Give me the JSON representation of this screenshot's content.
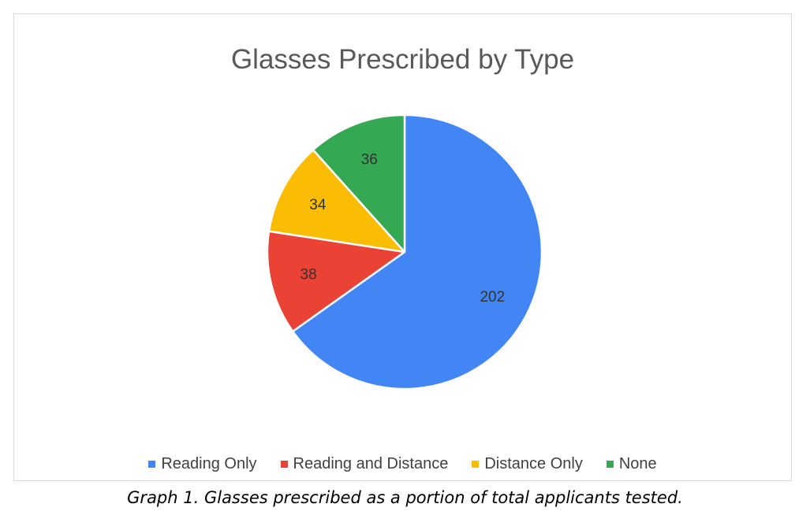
{
  "chart_data": {
    "type": "pie",
    "title": "Glasses Prescribed by Type",
    "categories": [
      "Reading Only",
      "Reading and Distance",
      "Distance Only",
      "None"
    ],
    "values": [
      202,
      38,
      34,
      36
    ],
    "colors": [
      "#4285F4",
      "#EA4335",
      "#FBBC04",
      "#34A853"
    ],
    "data_labels": [
      "202",
      "38",
      "34",
      "36"
    ],
    "legend_placement": "bottom",
    "start_angle": "12 o'clock",
    "direction": "clockwise"
  },
  "caption": "Graph 1. Glasses prescribed as a portion of total applicants tested."
}
